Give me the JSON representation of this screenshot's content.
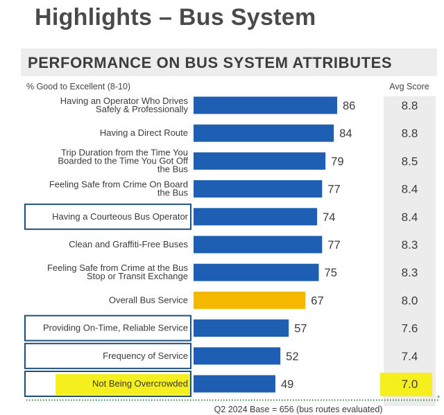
{
  "page": {
    "title": "Highlights – Bus System",
    "section_title": "PERFORMANCE ON BUS SYSTEM ATTRIBUTES"
  },
  "chart_data": {
    "type": "bar",
    "orientation": "horizontal",
    "y_header": "% Good to Excellent (8-10)",
    "score_header": "Avg Score",
    "base_note": "Q2 2024 Base = 656 (bus routes evaluated)",
    "categories": [
      [
        "Having an Operator Who Drives",
        "Safely & Professionally"
      ],
      [
        "Having a Direct Route"
      ],
      [
        "Trip Duration from the Time You",
        "Boarded to the Time You Got Off",
        "the Bus"
      ],
      [
        "Feeling Safe from Crime On Board",
        "the Bus"
      ],
      [
        "Having a Courteous Bus Operator"
      ],
      [
        "Clean and Graffiti-Free Buses"
      ],
      [
        "Feeling Safe from Crime at the Bus",
        "Stop or Transit Exchange"
      ],
      [
        "Overall Bus Service"
      ],
      [
        "Providing On-Time, Reliable Service"
      ],
      [
        "Frequency of Service"
      ],
      [
        "Not Being Overcrowded"
      ]
    ],
    "values": [
      86,
      84,
      79,
      77,
      74,
      77,
      75,
      67,
      57,
      52,
      49
    ],
    "avg_scores": [
      "8.8",
      "8.8",
      "8.5",
      "8.4",
      "8.4",
      "8.3",
      "8.3",
      "8.0",
      "7.6",
      "7.4",
      "7.0"
    ],
    "bar_colors": [
      "#1f5fb3",
      "#1f5fb3",
      "#1f5fb3",
      "#1f5fb3",
      "#1f5fb3",
      "#1f5fb3",
      "#1f5fb3",
      "#f5b800",
      "#1f5fb3",
      "#1f5fb3",
      "#1f5fb3"
    ],
    "boxed_categories": [
      4,
      8,
      9,
      10
    ],
    "highlighted_categories": [
      10
    ],
    "colors": {
      "bar": "#1f5fb3",
      "overall_bar": "#f5b800",
      "box_outline": "#1f4e79",
      "highlight": "#f6ef1e",
      "avg_panel": "#ececec",
      "baseline": "#2e8b3a"
    }
  }
}
